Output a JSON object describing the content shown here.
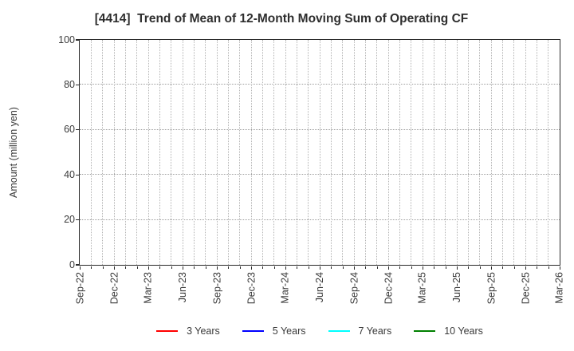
{
  "chart_data": {
    "type": "line",
    "title": "[4414]  Trend of Mean of 12-Month Moving Sum of Operating CF",
    "ylabel": "Amount (million yen)",
    "xlabel": "",
    "ylim": [
      0,
      100
    ],
    "yticks": [
      0,
      20,
      40,
      60,
      80,
      100
    ],
    "x_tick_labels": [
      "Sep-22",
      "Dec-22",
      "Mar-23",
      "Jun-23",
      "Sep-23",
      "Dec-23",
      "Mar-24",
      "Jun-24",
      "Sep-24",
      "Dec-24",
      "Mar-25",
      "Jun-25",
      "Sep-25",
      "Dec-25",
      "Mar-26"
    ],
    "x_months_per_labeled_tick": 3,
    "grid": {
      "visible": true,
      "line_style": "dotted",
      "vertical_interval": "monthly",
      "horizontal_at": [
        20,
        40,
        60,
        80
      ]
    },
    "legend_position": "bottom-center",
    "series": [
      {
        "name": "3 Years",
        "color": "#ff0000",
        "values": []
      },
      {
        "name": "5 Years",
        "color": "#0000ff",
        "values": []
      },
      {
        "name": "7 Years",
        "color": "#00ffff",
        "values": []
      },
      {
        "name": "10 Years",
        "color": "#008000",
        "values": []
      }
    ],
    "plot_is_empty": true
  },
  "colors": {
    "axis_frame": "#2a2a2a",
    "title_text": "#2e2e2e",
    "tick_text": "#3a3a3a",
    "grid": "#aaaaaa",
    "background": "#ffffff"
  }
}
